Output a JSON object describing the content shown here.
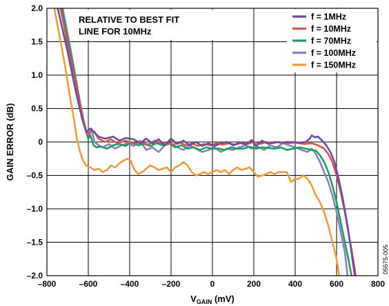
{
  "chart_data": {
    "type": "line",
    "xlabel_main": "V",
    "xlabel_sub": "GAIN",
    "xlabel_unit": " (mV)",
    "ylabel": "GAIN ERROR (dB)",
    "xlim": [
      -800,
      800
    ],
    "ylim": [
      -2.0,
      2.0
    ],
    "x_ticks": [
      -800,
      -600,
      -400,
      -200,
      0,
      200,
      400,
      600,
      800
    ],
    "x_tick_labels": [
      "–800",
      "–600",
      "–400",
      "–200",
      "0",
      "200",
      "400",
      "600",
      "800"
    ],
    "y_ticks": [
      2.0,
      1.5,
      1.0,
      0.5,
      0,
      -0.5,
      -1.0,
      -1.5,
      -2.0
    ],
    "y_tick_labels": [
      "2.0",
      "1.5",
      "1.0",
      "0.5",
      "0",
      "–0.5",
      "–1.0",
      "–1.5",
      "–2.0"
    ],
    "grid": true,
    "annotation_lines": [
      "RELATIVE TO BEST FIT",
      "LINE FOR 10MHz"
    ],
    "figure_id": "05575-005",
    "legend_position": "top-right",
    "series": [
      {
        "name": "f = 1MHz",
        "color": "#6a4b9c",
        "points": [
          [
            -755,
            2.1
          ],
          [
            -700,
            1.35
          ],
          [
            -660,
            0.75
          ],
          [
            -630,
            0.35
          ],
          [
            -610,
            0.15
          ],
          [
            -590,
            0.2
          ],
          [
            -570,
            0.14
          ],
          [
            -550,
            0.08
          ],
          [
            -520,
            0.05
          ],
          [
            -480,
            0.08
          ],
          [
            -450,
            0.02
          ],
          [
            -420,
            0.06
          ],
          [
            -380,
            0.04
          ],
          [
            -350,
            -0.02
          ],
          [
            -320,
            0.05
          ],
          [
            -290,
            -0.02
          ],
          [
            -260,
            0.04
          ],
          [
            -230,
            -0.05
          ],
          [
            -200,
            0.05
          ],
          [
            -170,
            -0.03
          ],
          [
            -140,
            0.02
          ],
          [
            -110,
            -0.05
          ],
          [
            -80,
            0.0
          ],
          [
            -50,
            -0.06
          ],
          [
            -20,
            -0.02
          ],
          [
            10,
            -0.06
          ],
          [
            40,
            -0.02
          ],
          [
            70,
            0.0
          ],
          [
            100,
            -0.05
          ],
          [
            130,
            -0.01
          ],
          [
            160,
            -0.04
          ],
          [
            190,
            0.03
          ],
          [
            210,
            -0.06
          ],
          [
            240,
            0.02
          ],
          [
            270,
            -0.03
          ],
          [
            300,
            0.0
          ],
          [
            330,
            -0.01
          ],
          [
            360,
            0.0
          ],
          [
            390,
            0.0
          ],
          [
            420,
            -0.01
          ],
          [
            450,
            0.0
          ],
          [
            470,
            0.05
          ],
          [
            480,
            0.1
          ],
          [
            495,
            0.07
          ],
          [
            510,
            0.08
          ],
          [
            530,
            0.02
          ],
          [
            550,
            -0.05
          ],
          [
            570,
            -0.15
          ],
          [
            590,
            -0.3
          ],
          [
            610,
            -0.55
          ],
          [
            630,
            -0.85
          ],
          [
            650,
            -1.2
          ],
          [
            670,
            -1.6
          ],
          [
            690,
            -2.05
          ]
        ]
      },
      {
        "name": "f = 10MHz",
        "color": "#d9534f",
        "points": [
          [
            -740,
            2.1
          ],
          [
            -690,
            1.3
          ],
          [
            -650,
            0.7
          ],
          [
            -625,
            0.35
          ],
          [
            -605,
            0.1
          ],
          [
            -585,
            0.18
          ],
          [
            -570,
            0.15
          ],
          [
            -550,
            0.05
          ],
          [
            -520,
            0.0
          ],
          [
            -490,
            0.04
          ],
          [
            -460,
            -0.02
          ],
          [
            -420,
            0.02
          ],
          [
            -380,
            -0.03
          ],
          [
            -350,
            0.0
          ],
          [
            -310,
            -0.04
          ],
          [
            -280,
            0.02
          ],
          [
            -250,
            -0.02
          ],
          [
            -220,
            0.0
          ],
          [
            -190,
            -0.04
          ],
          [
            -160,
            0.0
          ],
          [
            -130,
            -0.05
          ],
          [
            -100,
            -0.02
          ],
          [
            -70,
            -0.06
          ],
          [
            -40,
            -0.03
          ],
          [
            -10,
            -0.05
          ],
          [
            20,
            -0.02
          ],
          [
            50,
            -0.04
          ],
          [
            80,
            -0.02
          ],
          [
            110,
            -0.04
          ],
          [
            140,
            -0.01
          ],
          [
            170,
            -0.03
          ],
          [
            200,
            0.0
          ],
          [
            230,
            -0.03
          ],
          [
            260,
            0.0
          ],
          [
            290,
            -0.02
          ],
          [
            320,
            0.0
          ],
          [
            360,
            -0.02
          ],
          [
            400,
            -0.01
          ],
          [
            440,
            -0.03
          ],
          [
            480,
            -0.02
          ],
          [
            510,
            -0.05
          ],
          [
            540,
            -0.1
          ],
          [
            560,
            -0.18
          ],
          [
            580,
            -0.3
          ],
          [
            600,
            -0.5
          ],
          [
            620,
            -0.75
          ],
          [
            640,
            -1.05
          ],
          [
            660,
            -1.4
          ],
          [
            680,
            -1.75
          ],
          [
            695,
            -2.05
          ]
        ]
      },
      {
        "name": "f = 70MHz",
        "color": "#1a9e5a",
        "points": [
          [
            -735,
            2.1
          ],
          [
            -685,
            1.3
          ],
          [
            -645,
            0.65
          ],
          [
            -620,
            0.25
          ],
          [
            -600,
            0.05
          ],
          [
            -590,
            0.1
          ],
          [
            -575,
            -0.05
          ],
          [
            -560,
            -0.08
          ],
          [
            -540,
            -0.07
          ],
          [
            -510,
            -0.1
          ],
          [
            -480,
            -0.05
          ],
          [
            -450,
            -0.03
          ],
          [
            -420,
            -0.06
          ],
          [
            -390,
            0.0
          ],
          [
            -360,
            -0.05
          ],
          [
            -330,
            -0.03
          ],
          [
            -300,
            -0.06
          ],
          [
            -270,
            -0.02
          ],
          [
            -240,
            -0.05
          ],
          [
            -210,
            -0.02
          ],
          [
            -180,
            -0.08
          ],
          [
            -150,
            -0.05
          ],
          [
            -120,
            -0.1
          ],
          [
            -90,
            -0.08
          ],
          [
            -60,
            -0.12
          ],
          [
            -30,
            -0.08
          ],
          [
            0,
            -0.1
          ],
          [
            30,
            -0.1
          ],
          [
            60,
            -0.12
          ],
          [
            90,
            -0.08
          ],
          [
            120,
            -0.1
          ],
          [
            150,
            -0.1
          ],
          [
            180,
            -0.07
          ],
          [
            210,
            -0.1
          ],
          [
            240,
            -0.08
          ],
          [
            270,
            -0.09
          ],
          [
            300,
            -0.1
          ],
          [
            330,
            -0.08
          ],
          [
            360,
            -0.12
          ],
          [
            390,
            -0.1
          ],
          [
            420,
            -0.08
          ],
          [
            450,
            -0.1
          ],
          [
            480,
            -0.12
          ],
          [
            500,
            -0.13
          ],
          [
            520,
            -0.2
          ],
          [
            540,
            -0.3
          ],
          [
            560,
            -0.45
          ],
          [
            580,
            -0.65
          ],
          [
            600,
            -0.9
          ],
          [
            620,
            -1.2
          ],
          [
            640,
            -1.5
          ],
          [
            660,
            -1.8
          ],
          [
            675,
            -2.05
          ]
        ]
      },
      {
        "name": "f = 100MHz",
        "color": "#8b7cc4",
        "points": [
          [
            -730,
            2.1
          ],
          [
            -680,
            1.3
          ],
          [
            -640,
            0.6
          ],
          [
            -615,
            0.2
          ],
          [
            -600,
            0.05
          ],
          [
            -585,
            0.2
          ],
          [
            -570,
            0.0
          ],
          [
            -550,
            -0.05
          ],
          [
            -530,
            -0.08
          ],
          [
            -500,
            -0.03
          ],
          [
            -470,
            -0.1
          ],
          [
            -440,
            -0.05
          ],
          [
            -410,
            -0.02
          ],
          [
            -380,
            -0.06
          ],
          [
            -350,
            0.02
          ],
          [
            -320,
            -0.12
          ],
          [
            -290,
            -0.08
          ],
          [
            -260,
            -0.15
          ],
          [
            -230,
            -0.05
          ],
          [
            -200,
            -0.02
          ],
          [
            -170,
            -0.08
          ],
          [
            -140,
            -0.12
          ],
          [
            -110,
            -0.05
          ],
          [
            -80,
            -0.1
          ],
          [
            -50,
            -0.15
          ],
          [
            -20,
            -0.12
          ],
          [
            10,
            -0.08
          ],
          [
            40,
            -0.15
          ],
          [
            70,
            -0.1
          ],
          [
            100,
            -0.12
          ],
          [
            130,
            -0.08
          ],
          [
            160,
            -0.05
          ],
          [
            190,
            -0.1
          ],
          [
            220,
            -0.07
          ],
          [
            250,
            -0.12
          ],
          [
            280,
            -0.05
          ],
          [
            310,
            -0.08
          ],
          [
            340,
            -0.02
          ],
          [
            370,
            -0.05
          ],
          [
            400,
            -0.08
          ],
          [
            430,
            -0.12
          ],
          [
            460,
            -0.15
          ],
          [
            480,
            -0.1
          ],
          [
            500,
            -0.18
          ],
          [
            520,
            -0.3
          ],
          [
            540,
            -0.45
          ],
          [
            560,
            -0.6
          ],
          [
            580,
            -0.8
          ],
          [
            600,
            -1.05
          ],
          [
            620,
            -1.35
          ],
          [
            640,
            -1.65
          ],
          [
            655,
            -2.05
          ]
        ]
      },
      {
        "name": "f = 150MHz",
        "color": "#f39a3b",
        "points": [
          [
            -770,
            2.1
          ],
          [
            -740,
            1.6
          ],
          [
            -710,
            1.1
          ],
          [
            -690,
            0.7
          ],
          [
            -670,
            0.35
          ],
          [
            -655,
            0.05
          ],
          [
            -640,
            -0.15
          ],
          [
            -625,
            -0.28
          ],
          [
            -610,
            -0.35
          ],
          [
            -590,
            -0.38
          ],
          [
            -570,
            -0.42
          ],
          [
            -550,
            -0.4
          ],
          [
            -530,
            -0.45
          ],
          [
            -510,
            -0.42
          ],
          [
            -490,
            -0.35
          ],
          [
            -470,
            -0.38
          ],
          [
            -450,
            -0.32
          ],
          [
            -430,
            -0.28
          ],
          [
            -410,
            -0.25
          ],
          [
            -395,
            -0.28
          ],
          [
            -380,
            -0.4
          ],
          [
            -360,
            -0.48
          ],
          [
            -340,
            -0.45
          ],
          [
            -320,
            -0.4
          ],
          [
            -300,
            -0.35
          ],
          [
            -280,
            -0.38
          ],
          [
            -260,
            -0.42
          ],
          [
            -240,
            -0.4
          ],
          [
            -220,
            -0.38
          ],
          [
            -200,
            -0.45
          ],
          [
            -180,
            -0.38
          ],
          [
            -160,
            -0.35
          ],
          [
            -140,
            -0.3
          ],
          [
            -120,
            -0.35
          ],
          [
            -100,
            -0.45
          ],
          [
            -80,
            -0.5
          ],
          [
            -60,
            -0.48
          ],
          [
            -40,
            -0.45
          ],
          [
            -20,
            -0.48
          ],
          [
            0,
            -0.45
          ],
          [
            20,
            -0.42
          ],
          [
            40,
            -0.45
          ],
          [
            60,
            -0.42
          ],
          [
            80,
            -0.48
          ],
          [
            100,
            -0.42
          ],
          [
            120,
            -0.38
          ],
          [
            140,
            -0.42
          ],
          [
            160,
            -0.4
          ],
          [
            180,
            -0.38
          ],
          [
            200,
            -0.45
          ],
          [
            220,
            -0.52
          ],
          [
            240,
            -0.5
          ],
          [
            260,
            -0.48
          ],
          [
            280,
            -0.45
          ],
          [
            300,
            -0.48
          ],
          [
            320,
            -0.45
          ],
          [
            340,
            -0.45
          ],
          [
            360,
            -0.45
          ],
          [
            380,
            -0.6
          ],
          [
            400,
            -0.55
          ],
          [
            420,
            -0.55
          ],
          [
            440,
            -0.5
          ],
          [
            460,
            -0.55
          ],
          [
            480,
            -0.65
          ],
          [
            500,
            -0.8
          ],
          [
            520,
            -0.9
          ],
          [
            540,
            -1.05
          ],
          [
            560,
            -1.25
          ],
          [
            580,
            -1.5
          ],
          [
            600,
            -1.75
          ],
          [
            615,
            -2.05
          ]
        ]
      }
    ]
  }
}
